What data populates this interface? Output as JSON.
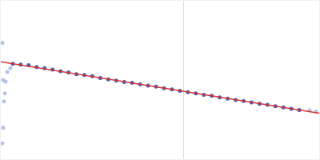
{
  "chart_data": {
    "type": "scatter",
    "tick_labels": false,
    "grid": true,
    "xlim": [
      0,
      400
    ],
    "ylim": [
      0,
      200
    ],
    "xticks": [
      230
    ],
    "yticks": [],
    "series": [
      {
        "type": "scatter",
        "marker": "circle",
        "color": "#b4c4e4",
        "x": [
          2,
          3,
          6,
          5,
          4,
          8,
          12,
          3,
          2,
          388,
          396
        ],
        "values": [
          147,
          100,
          98,
          83,
          73,
          110,
          115,
          40,
          20,
          61.5,
          60.2
        ]
      },
      {
        "type": "scatter",
        "marker": "circle",
        "color": "#3a66b4",
        "x": [
          15,
          25,
          35,
          45,
          55,
          65,
          75,
          85,
          95,
          105,
          115,
          125,
          135,
          145,
          155,
          165,
          175,
          185,
          195,
          205,
          215,
          225,
          235,
          245,
          255,
          265,
          275,
          285,
          295,
          305,
          315,
          325,
          335,
          345,
          355,
          365,
          375
        ],
        "values": [
          120.5,
          119.5,
          118.8,
          116.5,
          114.8,
          113.2,
          111.0,
          109.5,
          107.4,
          106.3,
          104.8,
          102.5,
          100.8,
          99.3,
          97.6,
          96.4,
          94.5,
          93.0,
          91.6,
          89.7,
          88.1,
          86.4,
          84.6,
          83.1,
          81.4,
          80.0,
          78.1,
          76.6,
          74.8,
          73.5,
          71.7,
          70.0,
          68.6,
          66.8,
          65.3,
          63.6,
          62.2
        ]
      },
      {
        "type": "line",
        "line_style": "solid",
        "color": "#e03030",
        "x": [
          0,
          400
        ],
        "values": [
          123,
          58
        ]
      }
    ]
  }
}
